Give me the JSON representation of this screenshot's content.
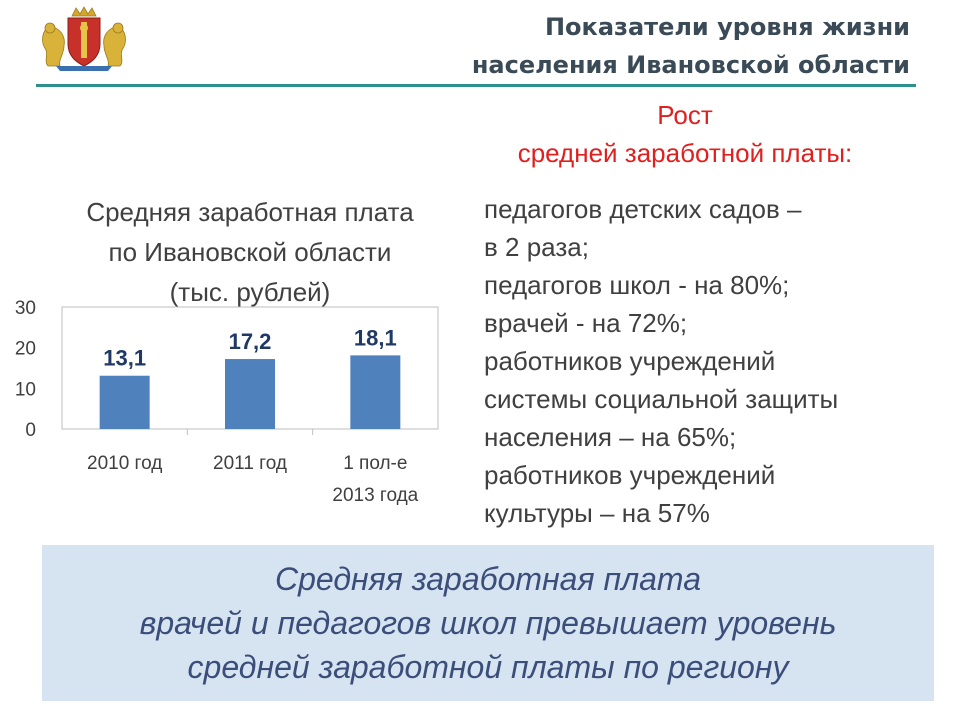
{
  "header": {
    "title_line1": "Показатели уровня жизни",
    "title_line2": "населения Ивановской области",
    "rule_color": "#2e8f8f"
  },
  "emblem": {
    "icon": "ivanovo-coat-of-arms-icon"
  },
  "chart_heading": {
    "line1": "Средняя заработная плата",
    "line2": "по Ивановской области",
    "line3": "(тыс. рублей)"
  },
  "chart_data": {
    "type": "bar",
    "title": "Средняя заработная плата по Ивановской области (тыс. рублей)",
    "categories": [
      [
        "2010 год"
      ],
      [
        "2011 год"
      ],
      [
        "1 пол-е",
        "2013 года"
      ]
    ],
    "values": [
      13.1,
      17.2,
      18.1
    ],
    "value_labels": [
      "13,1",
      "17,2",
      "18,1"
    ],
    "ylim": [
      0,
      30
    ],
    "y_ticks": [
      0,
      10,
      20,
      30
    ],
    "bar_color": "#4f81bd",
    "grid": false,
    "legend": "none"
  },
  "growth": {
    "title_line1": "Рост",
    "title_line2": "средней заработной платы:",
    "title_color": "#e0201e",
    "lines": [
      "педагогов детских садов –",
      "в 2 раза;",
      "педагогов школ  - на 80%;",
      "врачей  - на 72%;",
      "работников  учреждений",
      "системы социальной защиты",
      "населения – на 65%;",
      "работников учреждений",
      "культуры – на 57%"
    ]
  },
  "summary": {
    "line1": "Средняя заработная плата",
    "line2": "врачей и педагогов школ превышает уровень",
    "line3": "средней заработной платы по региону",
    "background": "#d6e3f1",
    "text_color": "#3b4e7a"
  }
}
